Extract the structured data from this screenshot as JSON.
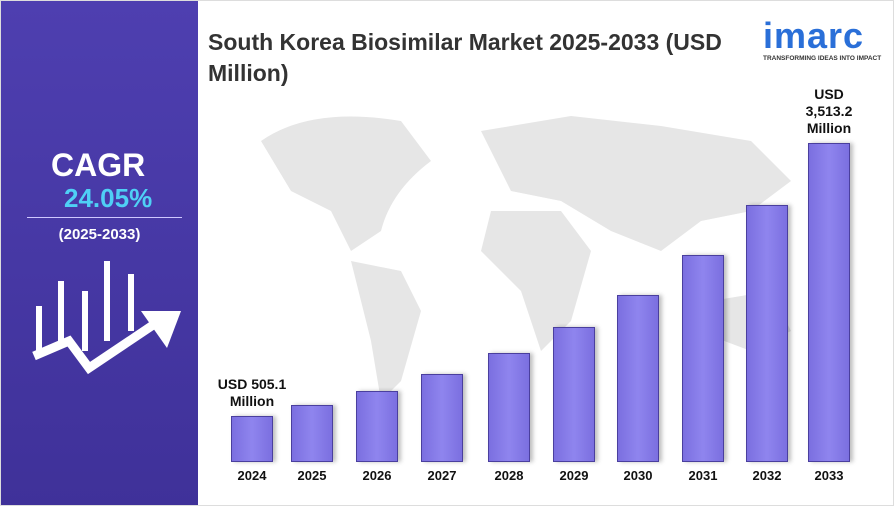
{
  "chart_data": {
    "type": "bar",
    "title": "South Korea Biosimilar Market 2025-2033 (USD Million)",
    "categories": [
      "2024",
      "2025",
      "2026",
      "2027",
      "2028",
      "2029",
      "2030",
      "2031",
      "2032",
      "2033"
    ],
    "values": [
      505.1,
      626.6,
      777.3,
      964.2,
      1196.1,
      1483.8,
      1840.6,
      2283.3,
      2832.4,
      3513.2
    ],
    "value_labels": [
      "USD 505.1 Million",
      null,
      null,
      null,
      null,
      null,
      null,
      null,
      null,
      "USD 3,513.2 Million"
    ],
    "color": "#7b6fe0"
  },
  "cagr_panel": {
    "label": "CAGR",
    "value": "24.05%",
    "period": "(2025-2033)"
  },
  "logo": {
    "name": "imarc",
    "tagline": "TRANSFORMING IDEAS INTO IMPACT"
  }
}
